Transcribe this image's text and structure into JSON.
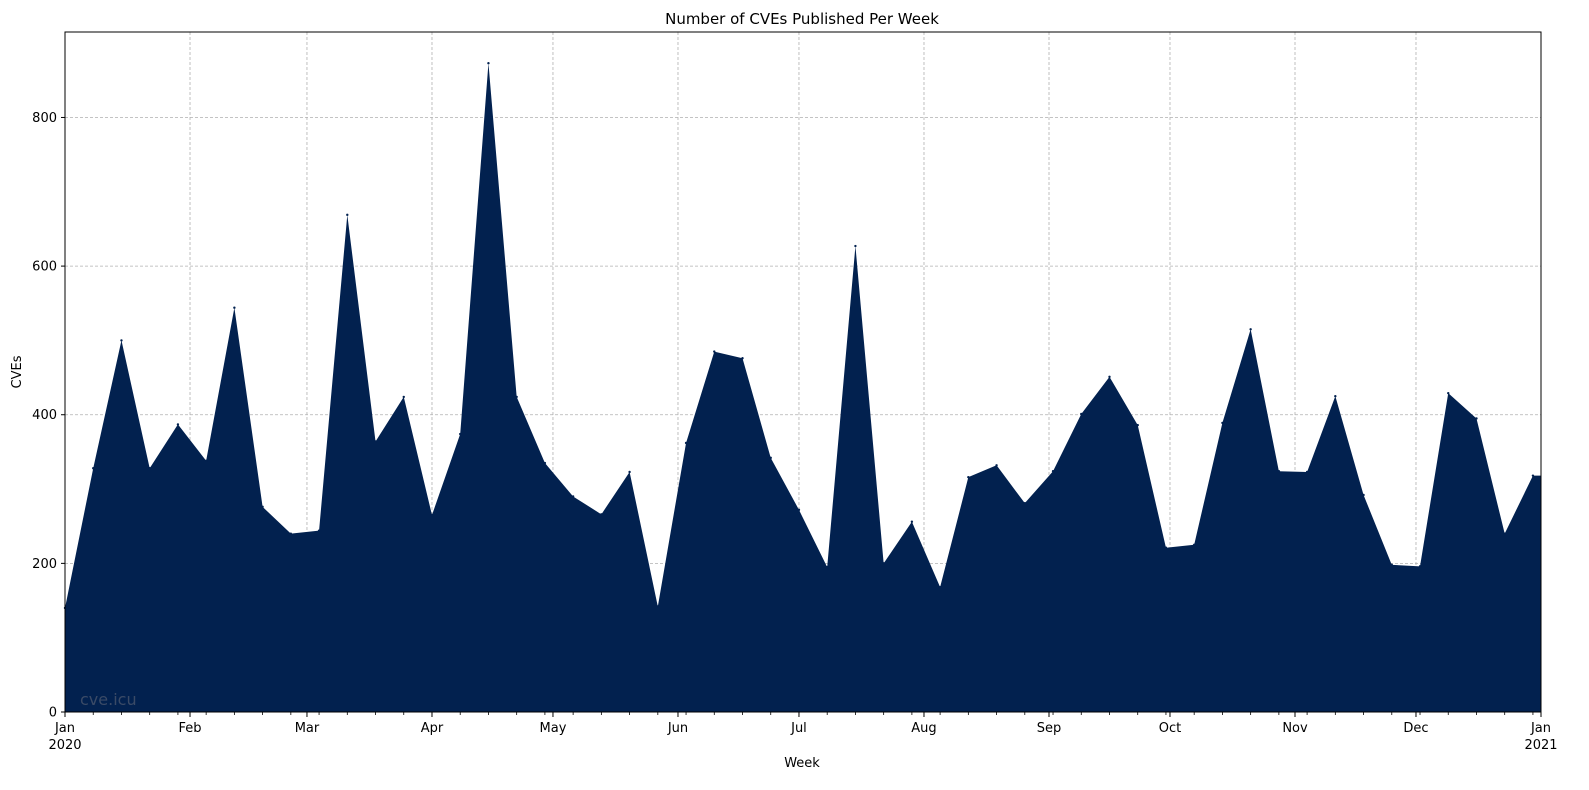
{
  "chart_data": {
    "type": "area",
    "title": "Number of CVEs Published Per Week",
    "xlabel": "Week",
    "ylabel": "CVEs",
    "watermark": "cve.icu",
    "fill_color": "#02214f",
    "grid": true,
    "x_range": [
      "2020-01-01",
      "2021-01-01"
    ],
    "ylim": [
      0,
      915
    ],
    "yticks": [
      0,
      200,
      400,
      600,
      800
    ],
    "xticks": [
      {
        "date": "2020-01-01",
        "label": "Jan",
        "sublabel": "2020"
      },
      {
        "date": "2020-02-01",
        "label": "Feb",
        "sublabel": ""
      },
      {
        "date": "2020-03-01",
        "label": "Mar",
        "sublabel": ""
      },
      {
        "date": "2020-04-01",
        "label": "Apr",
        "sublabel": ""
      },
      {
        "date": "2020-05-01",
        "label": "May",
        "sublabel": ""
      },
      {
        "date": "2020-06-01",
        "label": "Jun",
        "sublabel": ""
      },
      {
        "date": "2020-07-01",
        "label": "Jul",
        "sublabel": ""
      },
      {
        "date": "2020-08-01",
        "label": "Aug",
        "sublabel": ""
      },
      {
        "date": "2020-09-01",
        "label": "Sep",
        "sublabel": ""
      },
      {
        "date": "2020-10-01",
        "label": "Oct",
        "sublabel": ""
      },
      {
        "date": "2020-11-01",
        "label": "Nov",
        "sublabel": ""
      },
      {
        "date": "2020-12-01",
        "label": "Dec",
        "sublabel": ""
      },
      {
        "date": "2021-01-01",
        "label": "Jan",
        "sublabel": "2021"
      }
    ],
    "x": [
      "2020-01-01",
      "2020-01-08",
      "2020-01-15",
      "2020-01-22",
      "2020-01-29",
      "2020-02-05",
      "2020-02-12",
      "2020-02-19",
      "2020-02-26",
      "2020-03-04",
      "2020-03-11",
      "2020-03-18",
      "2020-03-25",
      "2020-04-01",
      "2020-04-08",
      "2020-04-15",
      "2020-04-22",
      "2020-04-29",
      "2020-05-06",
      "2020-05-13",
      "2020-05-20",
      "2020-05-27",
      "2020-06-03",
      "2020-06-10",
      "2020-06-17",
      "2020-06-24",
      "2020-07-01",
      "2020-07-08",
      "2020-07-15",
      "2020-07-22",
      "2020-07-29",
      "2020-08-05",
      "2020-08-12",
      "2020-08-19",
      "2020-08-26",
      "2020-09-02",
      "2020-09-09",
      "2020-09-16",
      "2020-09-23",
      "2020-09-30",
      "2020-10-07",
      "2020-10-14",
      "2020-10-21",
      "2020-10-28",
      "2020-11-04",
      "2020-11-11",
      "2020-11-18",
      "2020-11-25",
      "2020-12-02",
      "2020-12-09",
      "2020-12-16",
      "2020-12-23",
      "2020-12-30"
    ],
    "series": [
      {
        "values": [
          140,
          328,
          500,
          328,
          387,
          338,
          544,
          276,
          240,
          244,
          669,
          364,
          424,
          265,
          374,
          873,
          424,
          335,
          290,
          266,
          323,
          142,
          362,
          485,
          476,
          342,
          272,
          195,
          627,
          200,
          256,
          168,
          316,
          332,
          281,
          324,
          401,
          451,
          386,
          221,
          225,
          389,
          515,
          324,
          323,
          425,
          292,
          198,
          196,
          429,
          395,
          240,
          318
        ]
      }
    ]
  }
}
